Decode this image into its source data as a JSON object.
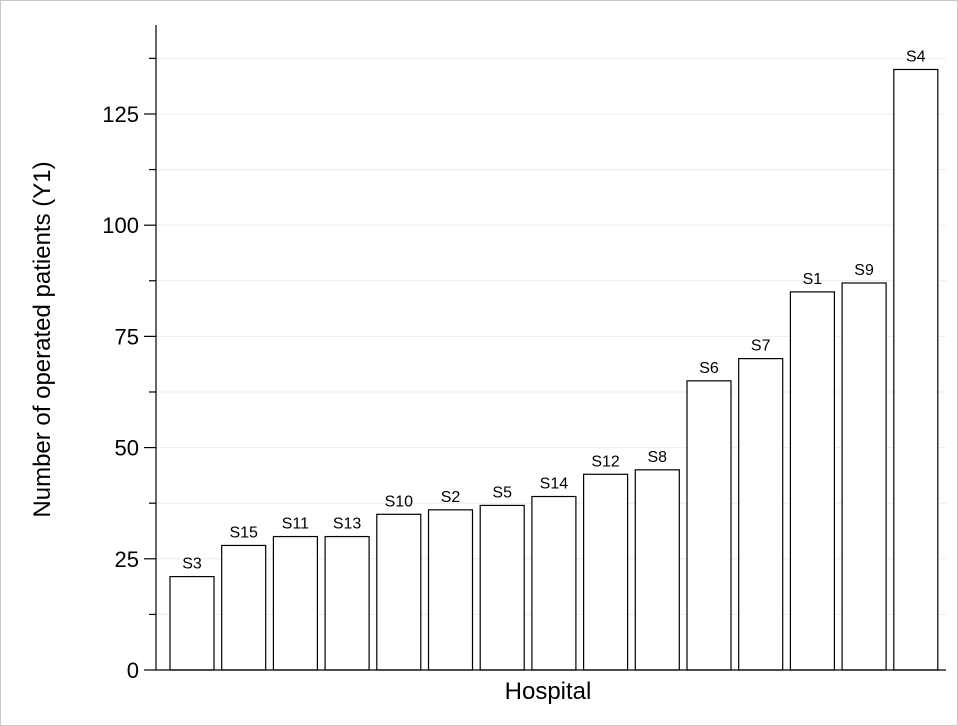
{
  "chart_data": {
    "type": "bar",
    "categories": [
      "S3",
      "S15",
      "S11",
      "S13",
      "S10",
      "S2",
      "S5",
      "S14",
      "S12",
      "S8",
      "S6",
      "S7",
      "S1",
      "S9",
      "S4"
    ],
    "values": [
      21,
      28,
      30,
      30,
      35,
      36,
      37,
      39,
      44,
      45,
      65,
      70,
      85,
      87,
      135
    ],
    "xlabel": "Hospital",
    "ylabel": "Number of operated patients (Y1)",
    "ylim": [
      0,
      145
    ],
    "yticks": [
      0,
      25,
      50,
      75,
      100,
      125
    ],
    "ytick_labels": [
      "0",
      "25",
      "50",
      "75",
      "100",
      "125"
    ],
    "grid": true,
    "bar_fill": "#ffffff",
    "bar_stroke": "#000000",
    "grid_color": "#ececec"
  }
}
